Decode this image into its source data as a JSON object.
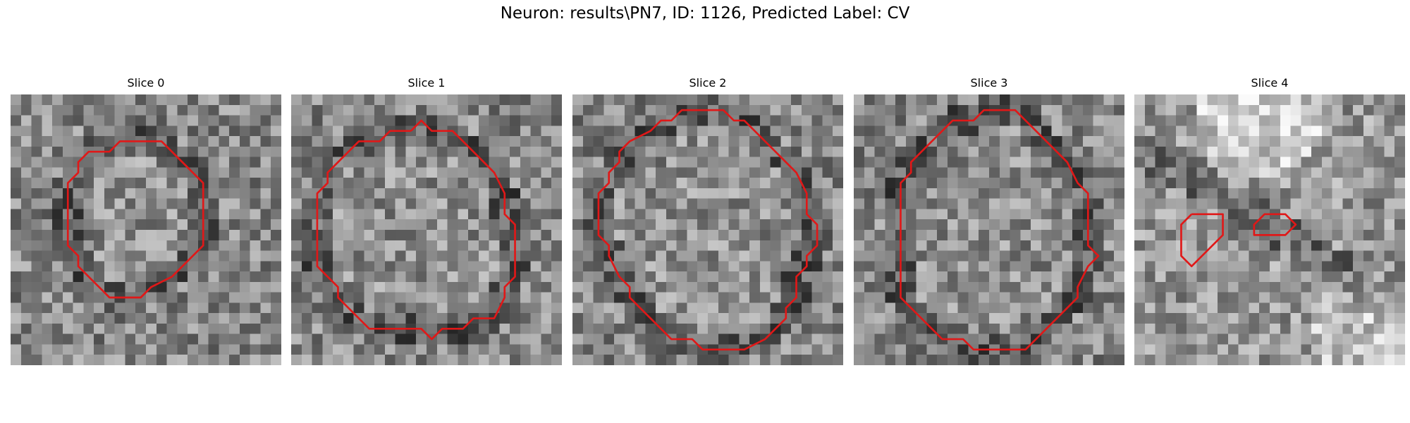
{
  "figure": {
    "title": "Neuron: results\\PN7, ID: 1126, Predicted Label: CV",
    "contour_color": "#e01818",
    "colormap": "grayscale",
    "panels": [
      {
        "title": "Slice 0",
        "shade": "mid",
        "contours": [
          [
            [
              13.5,
              4.5
            ],
            [
              10.5,
              4.5
            ],
            [
              9.5,
              5.5
            ],
            [
              7.5,
              5.5
            ],
            [
              6.5,
              6.5
            ],
            [
              6.5,
              7.5
            ],
            [
              5.5,
              8.5
            ],
            [
              5.5,
              11.5
            ],
            [
              5.5,
              14.5
            ],
            [
              6.5,
              15.5
            ],
            [
              6.5,
              16.5
            ],
            [
              7.5,
              17.5
            ],
            [
              8.5,
              18.5
            ],
            [
              9.5,
              19.5
            ],
            [
              12.5,
              19.5
            ],
            [
              13.5,
              18.5
            ],
            [
              15.5,
              17.5
            ],
            [
              16.5,
              16.5
            ],
            [
              17.5,
              15.5
            ],
            [
              18.5,
              14.5
            ],
            [
              18.5,
              13.5
            ],
            [
              18.5,
              11.5
            ],
            [
              18.5,
              8.5
            ],
            [
              17.5,
              7.5
            ],
            [
              16.5,
              6.5
            ],
            [
              15.5,
              5.5
            ],
            [
              14.5,
              4.5
            ],
            [
              13.5,
              4.5
            ]
          ]
        ]
      },
      {
        "title": "Slice 1",
        "shade": "mid",
        "contours": [
          [
            [
              11.5,
              3.5
            ],
            [
              9.5,
              3.5
            ],
            [
              8.5,
              4.5
            ],
            [
              6.5,
              4.5
            ],
            [
              5.5,
              5.5
            ],
            [
              4.5,
              6.5
            ],
            [
              3.5,
              7.5
            ],
            [
              3.5,
              8.5
            ],
            [
              2.5,
              9.5
            ],
            [
              2.5,
              11.5
            ],
            [
              2.5,
              16.5
            ],
            [
              3.5,
              17.5
            ],
            [
              4.5,
              18.5
            ],
            [
              4.5,
              19.5
            ],
            [
              5.5,
              20.5
            ],
            [
              6.5,
              21.5
            ],
            [
              7.5,
              22.5
            ],
            [
              10.5,
              22.5
            ],
            [
              12.5,
              22.5
            ],
            [
              13.5,
              23.5
            ],
            [
              14.5,
              22.5
            ],
            [
              16.5,
              22.5
            ],
            [
              17.5,
              21.5
            ],
            [
              19.5,
              21.5
            ],
            [
              20.5,
              19.5
            ],
            [
              20.5,
              18.5
            ],
            [
              21.5,
              17.5
            ],
            [
              21.5,
              15.5
            ],
            [
              21.5,
              12.5
            ],
            [
              20.5,
              11.5
            ],
            [
              20.5,
              9.5
            ],
            [
              19.5,
              7.5
            ],
            [
              18.5,
              6.5
            ],
            [
              17.5,
              5.5
            ],
            [
              16.5,
              4.5
            ],
            [
              15.5,
              3.5
            ],
            [
              13.5,
              3.5
            ],
            [
              12.5,
              2.5
            ],
            [
              11.5,
              3.5
            ]
          ]
        ]
      },
      {
        "title": "Slice 2",
        "shade": "mid",
        "contours": [
          [
            [
              12.5,
              1.5
            ],
            [
              10.5,
              1.5
            ],
            [
              9.5,
              2.5
            ],
            [
              8.5,
              2.5
            ],
            [
              7.5,
              3.5
            ],
            [
              5.5,
              4.5
            ],
            [
              4.5,
              5.5
            ],
            [
              4.5,
              6.5
            ],
            [
              3.5,
              7.5
            ],
            [
              3.5,
              8.5
            ],
            [
              2.5,
              9.5
            ],
            [
              2.5,
              11.5
            ],
            [
              2.5,
              13.5
            ],
            [
              3.5,
              14.5
            ],
            [
              3.5,
              15.5
            ],
            [
              4.5,
              17.5
            ],
            [
              5.5,
              18.5
            ],
            [
              5.5,
              19.5
            ],
            [
              6.5,
              20.5
            ],
            [
              7.5,
              21.5
            ],
            [
              8.5,
              22.5
            ],
            [
              9.5,
              23.5
            ],
            [
              11.5,
              23.5
            ],
            [
              12.5,
              24.5
            ],
            [
              14.5,
              24.5
            ],
            [
              16.5,
              24.5
            ],
            [
              18.5,
              23.5
            ],
            [
              19.5,
              22.5
            ],
            [
              20.5,
              21.5
            ],
            [
              20.5,
              20.5
            ],
            [
              21.5,
              19.5
            ],
            [
              21.5,
              17.5
            ],
            [
              22.5,
              16.5
            ],
            [
              22.5,
              15.5
            ],
            [
              23.5,
              14.5
            ],
            [
              23.5,
              12.5
            ],
            [
              22.5,
              11.5
            ],
            [
              22.5,
              9.5
            ],
            [
              21.5,
              7.5
            ],
            [
              20.5,
              6.5
            ],
            [
              19.5,
              5.5
            ],
            [
              18.5,
              4.5
            ],
            [
              17.5,
              3.5
            ],
            [
              16.5,
              2.5
            ],
            [
              15.5,
              2.5
            ],
            [
              14.5,
              1.5
            ],
            [
              12.5,
              1.5
            ]
          ]
        ]
      },
      {
        "title": "Slice 3",
        "shade": "mid",
        "contours": [
          [
            [
              14.5,
              1.5
            ],
            [
              12.5,
              1.5
            ],
            [
              11.5,
              2.5
            ],
            [
              9.5,
              2.5
            ],
            [
              8.5,
              3.5
            ],
            [
              7.5,
              4.5
            ],
            [
              6.5,
              5.5
            ],
            [
              5.5,
              6.5
            ],
            [
              5.5,
              7.5
            ],
            [
              4.5,
              8.5
            ],
            [
              4.5,
              9.5
            ],
            [
              4.5,
              12.5
            ],
            [
              4.5,
              16.5
            ],
            [
              4.5,
              19.5
            ],
            [
              5.5,
              20.5
            ],
            [
              6.5,
              21.5
            ],
            [
              7.5,
              22.5
            ],
            [
              8.5,
              23.5
            ],
            [
              10.5,
              23.5
            ],
            [
              11.5,
              24.5
            ],
            [
              13.5,
              24.5
            ],
            [
              16.5,
              24.5
            ],
            [
              17.5,
              23.5
            ],
            [
              18.5,
              22.5
            ],
            [
              19.5,
              21.5
            ],
            [
              20.5,
              20.5
            ],
            [
              21.5,
              19.5
            ],
            [
              21.5,
              18.5
            ],
            [
              22.5,
              16.5
            ],
            [
              23.5,
              15.5
            ],
            [
              22.5,
              14.5
            ],
            [
              22.5,
              12.5
            ],
            [
              22.5,
              9.5
            ],
            [
              21.5,
              8.5
            ],
            [
              20.5,
              6.5
            ],
            [
              19.5,
              5.5
            ],
            [
              18.5,
              4.5
            ],
            [
              17.5,
              3.5
            ],
            [
              16.5,
              2.5
            ],
            [
              15.5,
              1.5
            ],
            [
              14.5,
              1.5
            ]
          ]
        ]
      },
      {
        "title": "Slice 4",
        "shade": "light",
        "contours": [
          [
            [
              5.5,
              11.5
            ],
            [
              4.5,
              12.5
            ],
            [
              4.5,
              15.5
            ],
            [
              5.5,
              16.5
            ],
            [
              6.5,
              15.5
            ],
            [
              7.5,
              14.5
            ],
            [
              8.5,
              13.5
            ],
            [
              8.5,
              12.5
            ],
            [
              8.5,
              11.5
            ],
            [
              7.5,
              11.5
            ],
            [
              6.5,
              11.5
            ],
            [
              5.5,
              11.5
            ]
          ],
          [
            [
              13.5,
              11.5
            ],
            [
              12.5,
              11.5
            ],
            [
              11.5,
              12.5
            ],
            [
              11.5,
              13.5
            ],
            [
              13.5,
              13.5
            ],
            [
              14.5,
              13.5
            ],
            [
              15.5,
              12.5
            ],
            [
              14.5,
              11.5
            ],
            [
              13.5,
              11.5
            ]
          ]
        ]
      }
    ]
  }
}
